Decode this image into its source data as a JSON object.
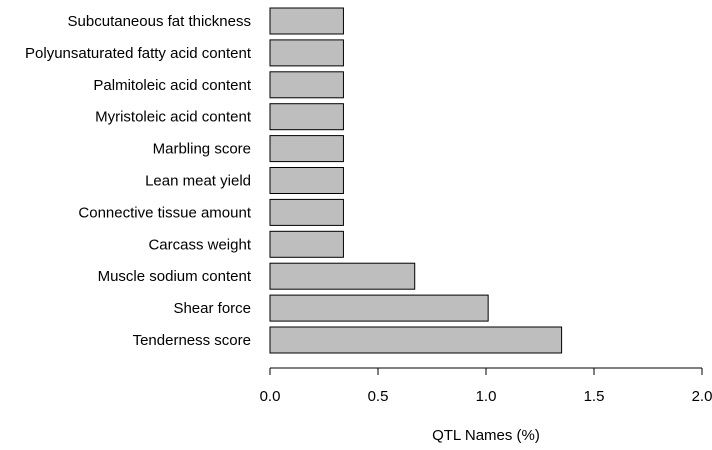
{
  "chart_data": {
    "type": "bar",
    "orientation": "horizontal",
    "title": "",
    "xlabel": "QTL Names (%)",
    "ylabel": "",
    "xlim": [
      0,
      2
    ],
    "xticks": [
      0,
      0.5,
      1,
      1.5,
      2
    ],
    "xtick_labels": [
      "0.0",
      "0.5",
      "1.0",
      "1.5",
      "2.0"
    ],
    "grid": false,
    "bar_color": "#bebebe",
    "categories": [
      "Subcutaneous fat thickness",
      "Polyunsaturated fatty acid content",
      "Palmitoleic acid content",
      "Myristoleic acid content",
      "Marbling score",
      "Lean meat yield",
      "Connective tissue amount",
      "Carcass weight",
      "Muscle sodium content",
      "Shear force",
      "Tenderness score"
    ],
    "values": [
      0.34,
      0.34,
      0.34,
      0.34,
      0.34,
      0.34,
      0.34,
      0.34,
      0.67,
      1.01,
      1.35
    ]
  }
}
